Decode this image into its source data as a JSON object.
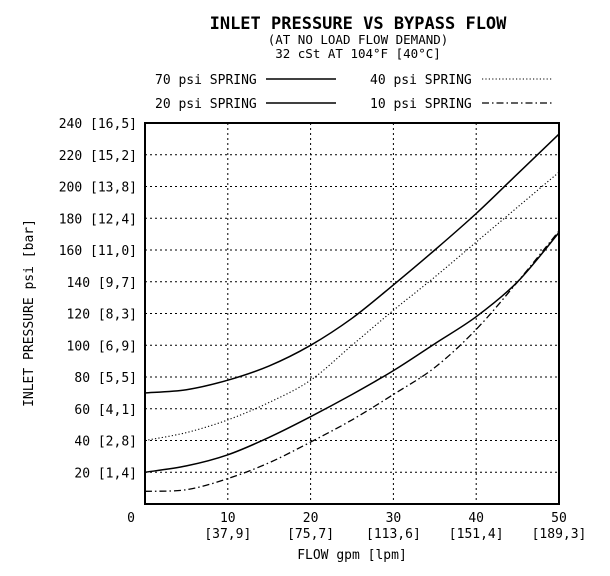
{
  "chart_data": {
    "type": "line",
    "title": "INLET PRESSURE VS BYPASS FLOW",
    "subtitle_lines": [
      "(AT NO LOAD FLOW DEMAND)",
      "32 cSt AT 104°F [40°C]"
    ],
    "xlabel": "FLOW gpm [lpm]",
    "ylabel": "INLET PRESSURE psi [bar]",
    "xlim": [
      0,
      50
    ],
    "ylim": [
      0,
      240
    ],
    "grid": true,
    "legend_placement": "top",
    "x_ticks": [
      {
        "value": 0,
        "label": "0",
        "sub": ""
      },
      {
        "value": 10,
        "label": "10",
        "sub": "[37,9]"
      },
      {
        "value": 20,
        "label": "20",
        "sub": "[75,7]"
      },
      {
        "value": 30,
        "label": "30",
        "sub": "[113,6]"
      },
      {
        "value": 40,
        "label": "40",
        "sub": "[151,4]"
      },
      {
        "value": 50,
        "label": "50",
        "sub": "[189,3]"
      }
    ],
    "y_ticks": [
      {
        "value": 20,
        "label": "20 [1,4]"
      },
      {
        "value": 40,
        "label": "40 [2,8]"
      },
      {
        "value": 60,
        "label": "60 [4,1]"
      },
      {
        "value": 80,
        "label": "80 [5,5]"
      },
      {
        "value": 100,
        "label": "100 [6,9]"
      },
      {
        "value": 120,
        "label": "120 [8,3]"
      },
      {
        "value": 140,
        "label": "140 [9,7]"
      },
      {
        "value": 160,
        "label": "160 [11,0]"
      },
      {
        "value": 180,
        "label": "180 [12,4]"
      },
      {
        "value": 200,
        "label": "200 [13,8]"
      },
      {
        "value": 220,
        "label": "220 [15,2]"
      },
      {
        "value": 240,
        "label": "240 [16,5]"
      }
    ],
    "series": [
      {
        "name": "70 psi SPRING",
        "style": "solid",
        "x": [
          0,
          5,
          10,
          15,
          20,
          25,
          30,
          35,
          40,
          45,
          50
        ],
        "y": [
          70,
          72,
          78,
          87,
          100,
          117,
          138,
          160,
          183,
          208,
          233
        ]
      },
      {
        "name": "40 psi SPRING",
        "style": "dotted",
        "x": [
          0,
          5,
          10,
          15,
          20,
          25,
          30,
          35,
          40,
          45,
          50
        ],
        "y": [
          40,
          45,
          53,
          64,
          78,
          100,
          122,
          143,
          165,
          187,
          209
        ]
      },
      {
        "name": "20 psi SPRING",
        "style": "solid",
        "x": [
          0,
          5,
          10,
          15,
          20,
          25,
          30,
          35,
          40,
          45,
          50
        ],
        "y": [
          20,
          24,
          31,
          42,
          55,
          69,
          84,
          101,
          118,
          140,
          171
        ]
      },
      {
        "name": "10 psi SPRING",
        "style": "dashdot",
        "x": [
          0,
          5,
          10,
          15,
          20,
          25,
          30,
          35,
          40,
          45,
          50
        ],
        "y": [
          8,
          9,
          16,
          26,
          39,
          53,
          69,
          86,
          110,
          140,
          172
        ]
      }
    ]
  }
}
